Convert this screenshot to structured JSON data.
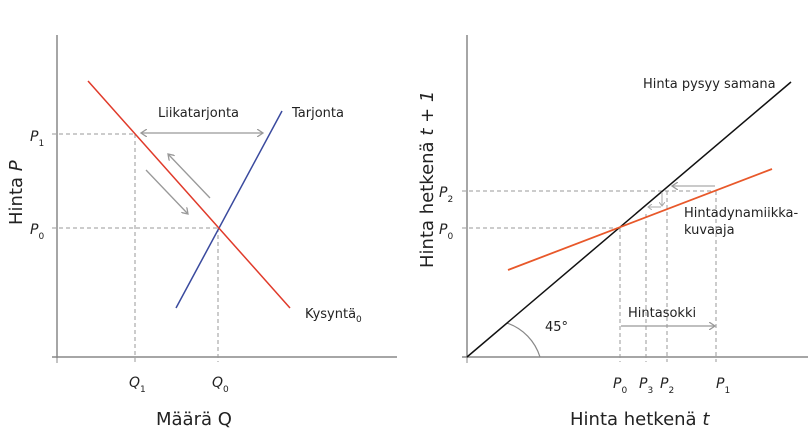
{
  "left_panel": {
    "y_axis_label": "Hinta",
    "y_axis_var": "P",
    "x_axis_label": "Määrä Q",
    "supply_label": "Tarjonta",
    "demand_label": "Kysyntä",
    "demand_sub": "0",
    "excess_supply_label": "Liikatarjonta",
    "y_ticks": [
      {
        "main": "P",
        "sub": "1"
      },
      {
        "main": "P",
        "sub": "0"
      }
    ],
    "x_ticks": [
      {
        "main": "Q",
        "sub": "1"
      },
      {
        "main": "Q",
        "sub": "0"
      }
    ],
    "colors": {
      "supply": "#3a4a9e",
      "demand": "#e03a2a",
      "guides": "#999999",
      "arrows": "#999999"
    }
  },
  "right_panel": {
    "y_axis_label": "Hinta hetkenä",
    "y_axis_var": "t + 1",
    "x_axis_label": "Hinta hetkenä",
    "x_axis_var": "t",
    "line_45_label": "Hinta pysyy samana",
    "dynamics_label_1": "Hintadynamiikka-",
    "dynamics_label_2": "kuvaaja",
    "shock_label": "Hintasokki",
    "angle_label": "45°",
    "y_ticks": [
      {
        "main": "P",
        "sub": "2"
      },
      {
        "main": "P",
        "sub": "0"
      }
    ],
    "x_ticks": [
      {
        "main": "P",
        "sub": "0"
      },
      {
        "main": "P",
        "sub": "3"
      },
      {
        "main": "P",
        "sub": "2"
      },
      {
        "main": "P",
        "sub": "1"
      }
    ],
    "colors": {
      "line_45": "#111111",
      "dynamics": "#e8582a",
      "guides": "#999999"
    }
  }
}
